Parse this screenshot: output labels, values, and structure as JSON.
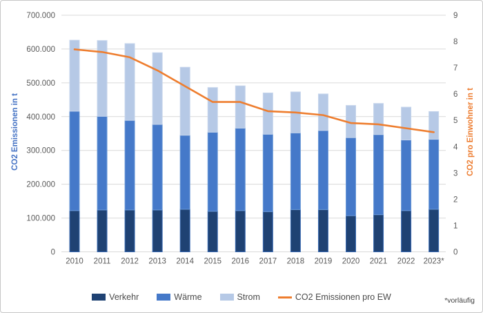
{
  "chart_data": {
    "type": "bar",
    "stacked": true,
    "grid": true,
    "legend_position": "bottom",
    "categories": [
      "2010",
      "2011",
      "2012",
      "2013",
      "2014",
      "2015",
      "2016",
      "2017",
      "2018",
      "2019",
      "2020",
      "2021",
      "2022",
      "2023*"
    ],
    "series": [
      {
        "name": "Verkehr",
        "color": "#1f4273",
        "border": "#3c6db5",
        "values": [
          122000,
          124000,
          124000,
          124000,
          126000,
          120000,
          122000,
          119000,
          125000,
          125000,
          107000,
          110000,
          122000,
          126000
        ]
      },
      {
        "name": "Wärme",
        "color": "#4579c9",
        "border": "#6b9ad8",
        "values": [
          294000,
          277000,
          265000,
          253000,
          219000,
          234000,
          244000,
          229000,
          227000,
          234000,
          231000,
          237000,
          209000,
          207000
        ]
      },
      {
        "name": "Strom",
        "color": "#b6c9e6",
        "border": "#c6d5ec",
        "values": [
          210000,
          224000,
          227000,
          212000,
          201000,
          132000,
          125000,
          122000,
          121000,
          108000,
          95000,
          92000,
          97000,
          82000
        ]
      }
    ],
    "line_series": {
      "name": "CO2 Emissionen pro EW",
      "color": "#ee7d2e",
      "axis": "right",
      "values": [
        7.7,
        7.6,
        7.4,
        6.9,
        6.3,
        5.7,
        5.7,
        5.35,
        5.3,
        5.2,
        4.9,
        4.85,
        4.7,
        4.55
      ]
    },
    "y_axis_left": {
      "title": "CO2 Emissionen in t",
      "color": "#4472c4",
      "min": 0,
      "max": 700000,
      "tick_labels": [
        "0",
        "100.000",
        "200.000",
        "300.000",
        "400.000",
        "500.000",
        "600.000",
        "700.000"
      ]
    },
    "y_axis_right": {
      "title": "CO2  pro Einwohner in t",
      "color": "#ed7d31",
      "min": 0,
      "max": 9,
      "tick_labels": [
        "0",
        "1",
        "2",
        "3",
        "4",
        "5",
        "6",
        "7",
        "8",
        "9"
      ]
    },
    "tick_label_color": "#595959",
    "gridline_color": "#d9d9d9",
    "footnote": "*vorläufig"
  }
}
